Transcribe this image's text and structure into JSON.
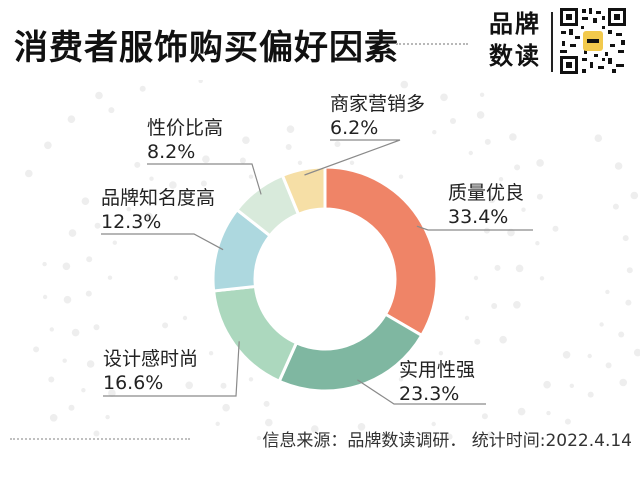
{
  "header": {
    "title": "消费者服饰购买偏好因素",
    "brand_line1": "品牌",
    "brand_line2": "数读"
  },
  "footer": {
    "source": "信息来源：品牌数读调研． 统计时间:2022.4.14"
  },
  "colors": {
    "质量优良": "#ef8467",
    "实用性强": "#7fb7a1",
    "设计感时尚": "#acd8be",
    "品牌知名度高": "#add8df",
    "性价比高": "#d8eadb",
    "商家营销多": "#f6dfa6"
  },
  "chart_data": {
    "type": "pie",
    "variant": "donut",
    "title": "消费者服饰购买偏好因素",
    "categories": [
      "质量优良",
      "实用性强",
      "设计感时尚",
      "品牌知名度高",
      "性价比高",
      "商家营销多"
    ],
    "values": [
      33.4,
      23.3,
      16.6,
      12.3,
      8.2,
      6.2
    ],
    "value_labels": [
      "33.4%",
      "23.3%",
      "16.6%",
      "12.3%",
      "8.2%",
      "6.2%"
    ],
    "unit": "%",
    "start_angle": "12 o'clock",
    "direction": "clockwise",
    "legend": "none"
  }
}
